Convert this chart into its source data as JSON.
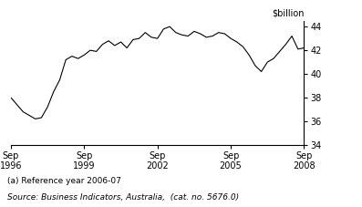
{
  "title": "",
  "ylabel": "$billion",
  "ylim": [
    34,
    44.5
  ],
  "yticks": [
    34,
    36,
    38,
    40,
    42,
    44
  ],
  "xtick_labels": [
    "Sep\n1996",
    "Sep\n1999",
    "Sep\n2002",
    "Sep\n2005",
    "Sep\n2008"
  ],
  "footnote": "(a) Reference year 2006-07",
  "source": "Source: Business Indicators, Australia,  (cat. no. 5676.0)",
  "line_color": "#000000",
  "background_color": "#ffffff",
  "x_values": [
    1996.75,
    1997.0,
    1997.25,
    1997.5,
    1997.75,
    1998.0,
    1998.25,
    1998.5,
    1998.75,
    1999.0,
    1999.25,
    1999.5,
    1999.75,
    2000.0,
    2000.25,
    2000.5,
    2000.75,
    2001.0,
    2001.25,
    2001.5,
    2001.75,
    2002.0,
    2002.25,
    2002.5,
    2002.75,
    2003.0,
    2003.25,
    2003.5,
    2003.75,
    2004.0,
    2004.25,
    2004.5,
    2004.75,
    2005.0,
    2005.25,
    2005.5,
    2005.75,
    2006.0,
    2006.25,
    2006.5,
    2006.75,
    2007.0,
    2007.25,
    2007.5,
    2007.75,
    2008.0,
    2008.25,
    2008.5,
    2008.75
  ],
  "y_values": [
    38.0,
    37.4,
    36.8,
    36.5,
    36.2,
    36.3,
    37.2,
    38.5,
    39.5,
    41.2,
    41.5,
    41.3,
    41.6,
    42.0,
    41.9,
    42.5,
    42.8,
    42.4,
    42.7,
    42.2,
    42.9,
    43.0,
    43.5,
    43.1,
    43.0,
    43.8,
    44.0,
    43.5,
    43.3,
    43.2,
    43.6,
    43.4,
    43.1,
    43.2,
    43.5,
    43.4,
    43.0,
    42.7,
    42.3,
    41.6,
    40.7,
    40.2,
    41.0,
    41.3,
    41.9,
    42.5,
    43.2,
    42.1,
    42.2
  ],
  "xtick_positions": [
    1996.75,
    1999.75,
    2002.75,
    2005.75,
    2008.75
  ]
}
